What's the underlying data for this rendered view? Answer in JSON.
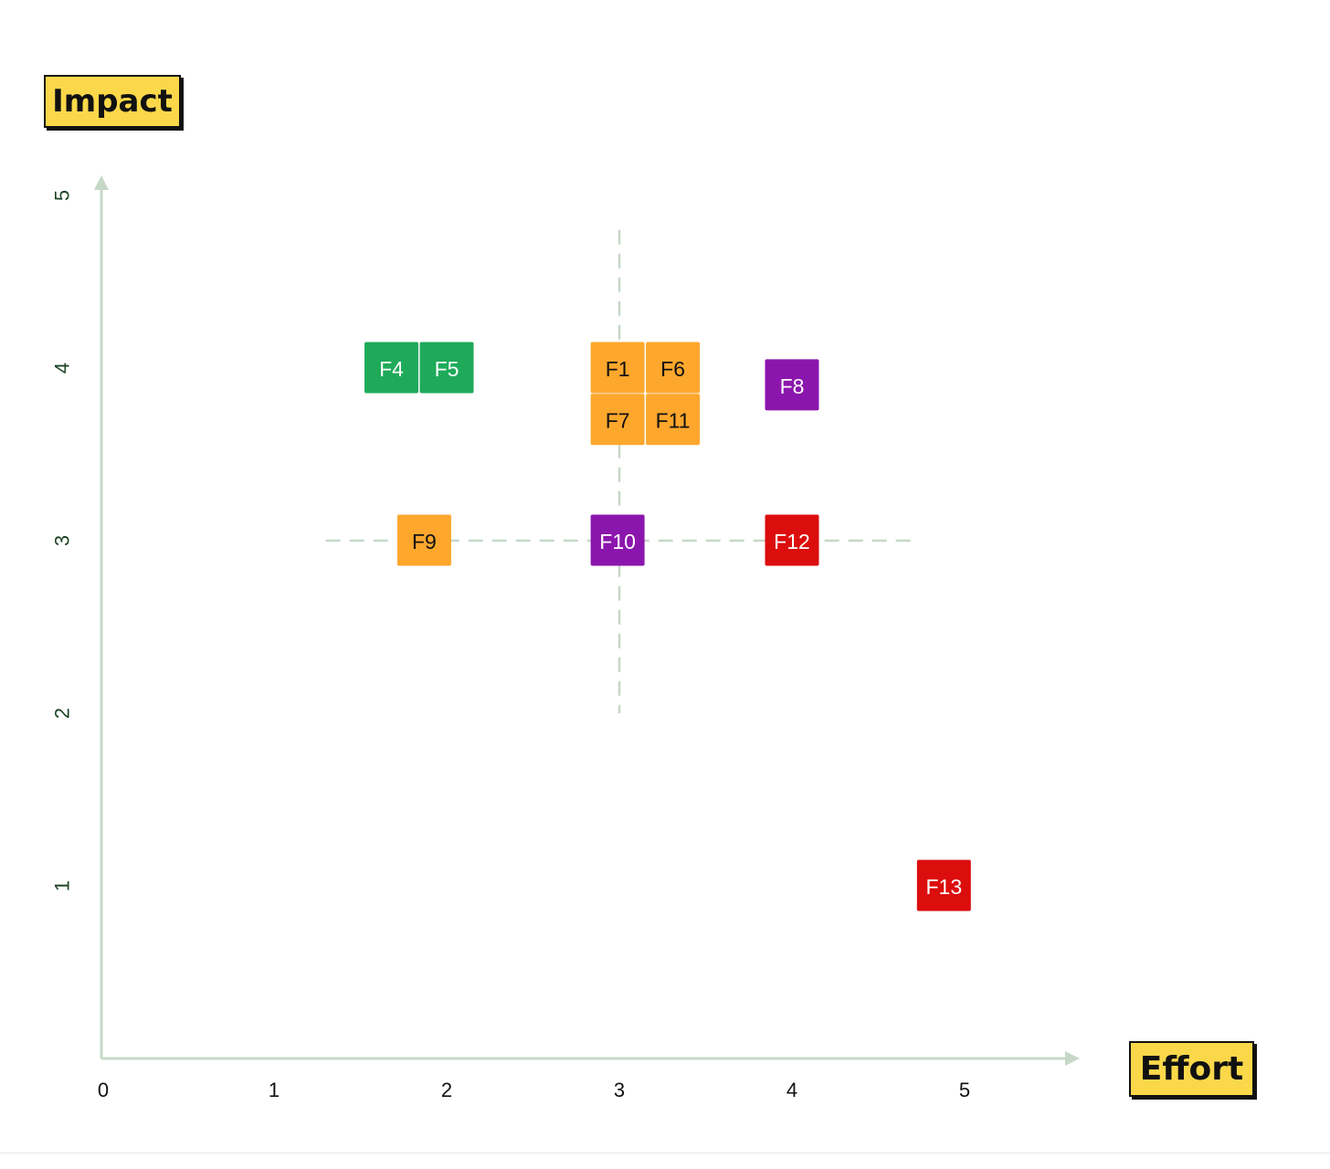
{
  "chart_data": {
    "type": "scatter",
    "title": "",
    "xlabel": "Effort",
    "ylabel": "Impact",
    "xlim": [
      0,
      5
    ],
    "ylim": [
      0,
      5
    ],
    "x_ticks": [
      "0",
      "1",
      "2",
      "3",
      "4",
      "5"
    ],
    "y_ticks": [
      "1",
      "2",
      "3",
      "4",
      "5"
    ],
    "grid": false,
    "crosshair": {
      "x": 3,
      "y": 3,
      "x_range": [
        1.3,
        4.7
      ],
      "y_range": [
        2,
        4.8
      ]
    },
    "points": [
      {
        "label": "F4",
        "x": 1.68,
        "y": 4.0,
        "color": "#1faa5a",
        "text_color": "#ffffff"
      },
      {
        "label": "F5",
        "x": 2.0,
        "y": 4.0,
        "color": "#1faa5a",
        "text_color": "#ffffff"
      },
      {
        "label": "F1",
        "x": 2.99,
        "y": 4.0,
        "color": "#fda72d",
        "text_color": "#111111"
      },
      {
        "label": "F6",
        "x": 3.31,
        "y": 4.0,
        "color": "#fda72d",
        "text_color": "#111111"
      },
      {
        "label": "F7",
        "x": 2.99,
        "y": 3.7,
        "color": "#fda72d",
        "text_color": "#111111"
      },
      {
        "label": "F11",
        "x": 3.31,
        "y": 3.7,
        "color": "#fda72d",
        "text_color": "#111111"
      },
      {
        "label": "F8",
        "x": 4.0,
        "y": 3.9,
        "color": "#8b16ad",
        "text_color": "#ffffff"
      },
      {
        "label": "F9",
        "x": 1.87,
        "y": 3.0,
        "color": "#fda72d",
        "text_color": "#111111"
      },
      {
        "label": "F10",
        "x": 2.99,
        "y": 3.0,
        "color": "#8b16ad",
        "text_color": "#ffffff"
      },
      {
        "label": "F12",
        "x": 4.0,
        "y": 3.0,
        "color": "#dc0d0d",
        "text_color": "#ffffff"
      },
      {
        "label": "F13",
        "x": 4.88,
        "y": 1.0,
        "color": "#dc0d0d",
        "text_color": "#ffffff"
      }
    ],
    "colors": {
      "axis": "#c6d8c8",
      "tick_y": "#1e4424",
      "tick_x": "#111111",
      "label_bg": "#fbd84a"
    }
  }
}
